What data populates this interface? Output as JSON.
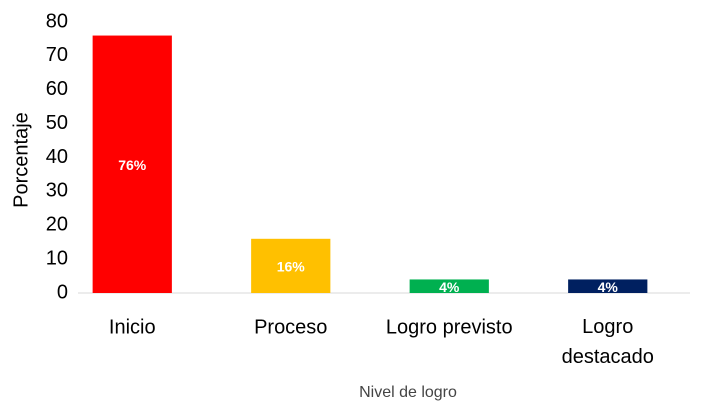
{
  "chart_data": {
    "type": "bar",
    "categories": [
      "Inicio",
      "Proceso",
      "Logro previsto",
      "Logro destacado"
    ],
    "values": [
      76,
      16,
      4,
      4
    ],
    "value_labels": [
      "76%",
      "16%",
      "4%",
      "4%"
    ],
    "colors": [
      "#ff0000",
      "#ffc000",
      "#00b050",
      "#002060"
    ],
    "x_label": "Nivel de logro",
    "y_label": "Porcentaje",
    "ylim": [
      0,
      80
    ],
    "yticks": [
      0,
      10,
      20,
      30,
      40,
      50,
      60,
      70,
      80
    ],
    "grid": false
  }
}
